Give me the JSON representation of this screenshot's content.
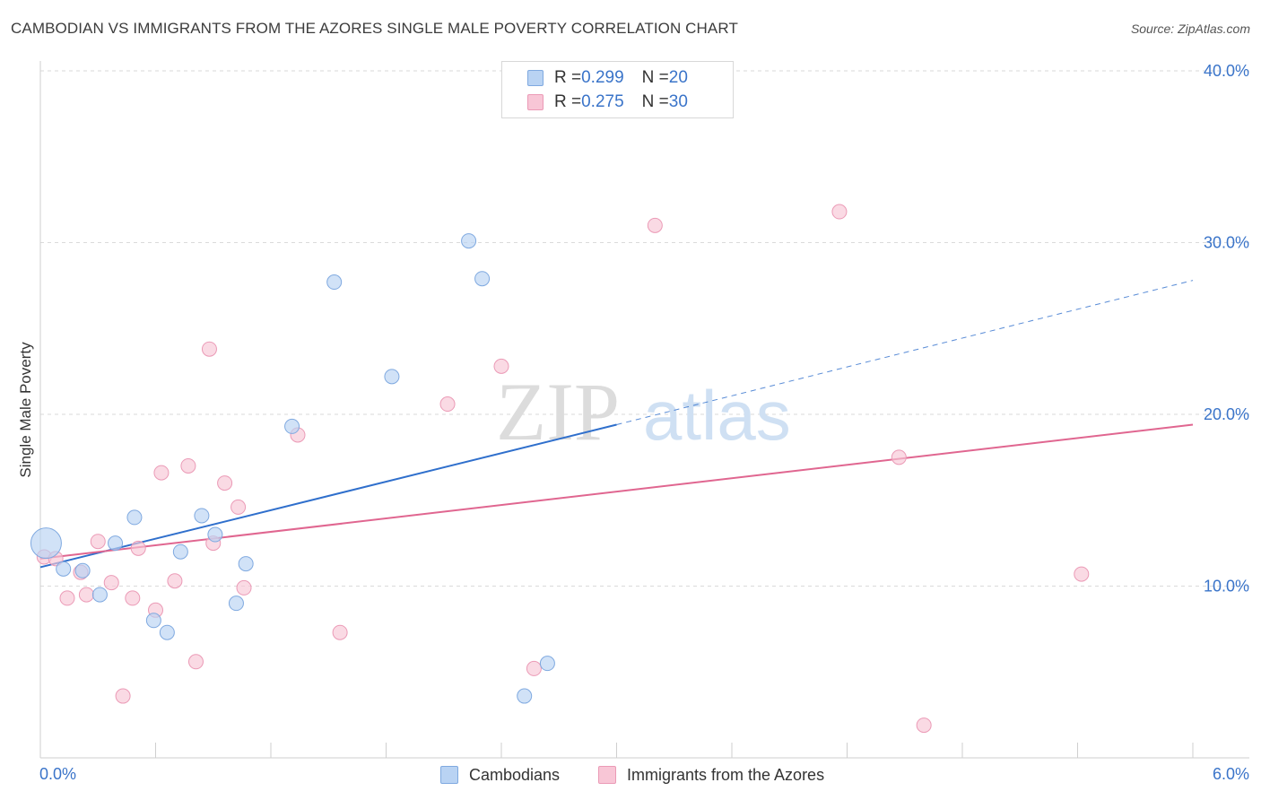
{
  "title": "CAMBODIAN VS IMMIGRANTS FROM THE AZORES SINGLE MALE POVERTY CORRELATION CHART",
  "source": "Source: ZipAtlas.com",
  "watermark": {
    "zip": "ZIP",
    "atlas": "atlas"
  },
  "colors": {
    "blue_fill": "#b9d3f3",
    "blue_stroke": "#7fa9e0",
    "blue_line": "#2f6fcc",
    "pink_fill": "#f8c6d6",
    "pink_stroke": "#eb9ab6",
    "pink_line": "#e06690",
    "axis_label": "#3a74c9",
    "grid": "#dadada"
  },
  "legend": {
    "r_label": "R = ",
    "n_label": "N = ",
    "series": [
      {
        "r": "0.299",
        "n": "20"
      },
      {
        "r": "0.275",
        "n": "30"
      }
    ]
  },
  "chart_data": {
    "type": "scatter",
    "xlabel": "",
    "ylabel": "Single Male Poverty",
    "xlim": [
      0.0,
      6.0
    ],
    "ylim": [
      0.0,
      40.0
    ],
    "x_tick_labels": [
      "0.0%",
      "6.0%"
    ],
    "y_ticks": [
      10,
      20,
      30,
      40
    ],
    "y_tick_labels": [
      "10.0%",
      "20.0%",
      "30.0%",
      "40.0%"
    ],
    "grid": true,
    "series": [
      {
        "name": "Cambodians",
        "points": [
          {
            "x": 0.03,
            "y": 12.5,
            "size": "large"
          },
          {
            "x": 0.12,
            "y": 11.0
          },
          {
            "x": 0.22,
            "y": 10.9
          },
          {
            "x": 0.31,
            "y": 9.5
          },
          {
            "x": 0.39,
            "y": 12.5
          },
          {
            "x": 0.49,
            "y": 14.0
          },
          {
            "x": 0.59,
            "y": 8.0
          },
          {
            "x": 0.66,
            "y": 7.3
          },
          {
            "x": 0.73,
            "y": 12.0
          },
          {
            "x": 0.84,
            "y": 14.1
          },
          {
            "x": 0.91,
            "y": 13.0
          },
          {
            "x": 1.02,
            "y": 9.0
          },
          {
            "x": 1.07,
            "y": 11.3
          },
          {
            "x": 1.31,
            "y": 19.3
          },
          {
            "x": 1.53,
            "y": 27.7
          },
          {
            "x": 1.83,
            "y": 22.2
          },
          {
            "x": 2.23,
            "y": 30.1
          },
          {
            "x": 2.3,
            "y": 27.9
          },
          {
            "x": 2.52,
            "y": 3.6
          },
          {
            "x": 2.64,
            "y": 5.5
          }
        ],
        "trend": {
          "x0": 0.0,
          "y0": 11.1,
          "x1": 3.0,
          "y1": 19.4,
          "dash_x1": 6.0,
          "dash_y1": 27.8
        }
      },
      {
        "name": "Immigrants from the Azores",
        "points": [
          {
            "x": 0.02,
            "y": 11.7
          },
          {
            "x": 0.08,
            "y": 11.6
          },
          {
            "x": 0.14,
            "y": 9.3
          },
          {
            "x": 0.21,
            "y": 10.8
          },
          {
            "x": 0.24,
            "y": 9.5
          },
          {
            "x": 0.3,
            "y": 12.6
          },
          {
            "x": 0.37,
            "y": 10.2
          },
          {
            "x": 0.43,
            "y": 3.6
          },
          {
            "x": 0.48,
            "y": 9.3
          },
          {
            "x": 0.51,
            "y": 12.2
          },
          {
            "x": 0.6,
            "y": 8.6
          },
          {
            "x": 0.63,
            "y": 16.6
          },
          {
            "x": 0.7,
            "y": 10.3
          },
          {
            "x": 0.77,
            "y": 17.0
          },
          {
            "x": 0.81,
            "y": 5.6
          },
          {
            "x": 0.88,
            "y": 23.8
          },
          {
            "x": 0.9,
            "y": 12.5
          },
          {
            "x": 0.96,
            "y": 16.0
          },
          {
            "x": 1.03,
            "y": 14.6
          },
          {
            "x": 1.06,
            "y": 9.9
          },
          {
            "x": 1.34,
            "y": 18.8
          },
          {
            "x": 1.56,
            "y": 7.3
          },
          {
            "x": 2.12,
            "y": 20.6
          },
          {
            "x": 2.4,
            "y": 22.8
          },
          {
            "x": 2.57,
            "y": 5.2
          },
          {
            "x": 3.2,
            "y": 31.0
          },
          {
            "x": 4.16,
            "y": 31.8
          },
          {
            "x": 4.47,
            "y": 17.5
          },
          {
            "x": 4.6,
            "y": 1.9
          },
          {
            "x": 5.42,
            "y": 10.7
          }
        ],
        "trend": {
          "x0": 0.0,
          "y0": 11.6,
          "x1": 6.0,
          "y1": 19.4
        }
      }
    ]
  }
}
